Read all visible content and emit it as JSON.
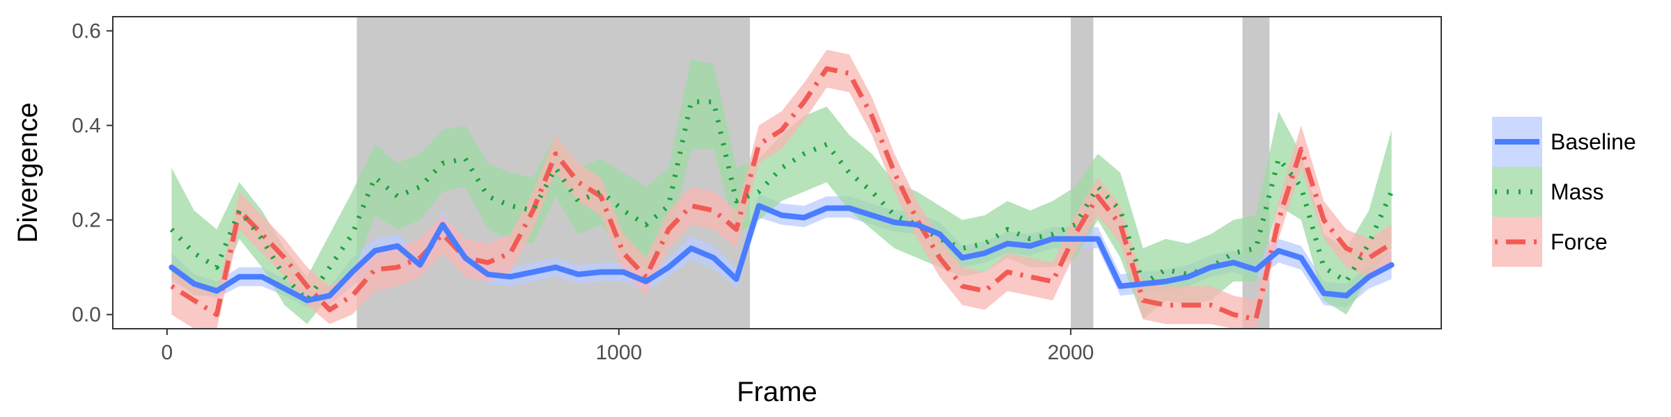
{
  "chart_data": {
    "type": "line",
    "xlabel": "Frame",
    "ylabel": "Divergence",
    "xlim": [
      -120,
      2820
    ],
    "ylim": [
      -0.03,
      0.63
    ],
    "x_ticks": [
      0,
      1000,
      2000
    ],
    "y_ticks": [
      0.0,
      0.2,
      0.4,
      0.6
    ],
    "x_tick_labels": [
      "0",
      "1000",
      "2000"
    ],
    "y_tick_labels": [
      "0.0",
      "0.2",
      "0.4",
      "0.6"
    ],
    "grid": false,
    "legend_position": "right",
    "shaded_regions": [
      [
        420,
        1290
      ],
      [
        2000,
        2050
      ],
      [
        2380,
        2440
      ]
    ],
    "x": [
      10,
      60,
      110,
      160,
      210,
      260,
      310,
      360,
      410,
      460,
      510,
      560,
      610,
      660,
      710,
      760,
      810,
      860,
      910,
      960,
      1010,
      1060,
      1110,
      1160,
      1210,
      1260,
      1310,
      1360,
      1410,
      1460,
      1510,
      1560,
      1610,
      1660,
      1710,
      1760,
      1810,
      1860,
      1910,
      1960,
      2010,
      2060,
      2110,
      2160,
      2210,
      2260,
      2310,
      2360,
      2410,
      2460,
      2510,
      2560,
      2610,
      2660,
      2710
    ],
    "series": [
      {
        "name": "Baseline",
        "color": "#4a7dff",
        "band_color": "#b9cbff",
        "line_style": "solid",
        "values": [
          0.1,
          0.065,
          0.05,
          0.08,
          0.08,
          0.055,
          0.03,
          0.04,
          0.09,
          0.135,
          0.145,
          0.105,
          0.19,
          0.12,
          0.085,
          0.08,
          0.09,
          0.1,
          0.085,
          0.09,
          0.09,
          0.07,
          0.1,
          0.14,
          0.12,
          0.075,
          0.23,
          0.21,
          0.205,
          0.225,
          0.225,
          0.21,
          0.195,
          0.19,
          0.17,
          0.12,
          0.13,
          0.15,
          0.145,
          0.16,
          0.16,
          0.16,
          0.06,
          0.065,
          0.07,
          0.08,
          0.1,
          0.11,
          0.095,
          0.135,
          0.12,
          0.045,
          0.04,
          0.08,
          0.105
        ],
        "lower": [
          0.07,
          0.045,
          0.035,
          0.06,
          0.06,
          0.04,
          0.015,
          0.02,
          0.06,
          0.11,
          0.12,
          0.08,
          0.16,
          0.095,
          0.065,
          0.06,
          0.07,
          0.08,
          0.065,
          0.07,
          0.07,
          0.05,
          0.08,
          0.115,
          0.095,
          0.055,
          0.205,
          0.19,
          0.185,
          0.205,
          0.205,
          0.19,
          0.175,
          0.17,
          0.15,
          0.1,
          0.11,
          0.13,
          0.125,
          0.14,
          0.14,
          0.14,
          0.04,
          0.045,
          0.05,
          0.06,
          0.08,
          0.09,
          0.075,
          0.11,
          0.095,
          0.02,
          0.015,
          0.055,
          0.075
        ],
        "upper": [
          0.13,
          0.085,
          0.07,
          0.1,
          0.1,
          0.075,
          0.05,
          0.06,
          0.12,
          0.16,
          0.17,
          0.13,
          0.22,
          0.145,
          0.105,
          0.1,
          0.11,
          0.12,
          0.105,
          0.11,
          0.11,
          0.09,
          0.12,
          0.165,
          0.145,
          0.1,
          0.255,
          0.235,
          0.23,
          0.25,
          0.25,
          0.235,
          0.22,
          0.215,
          0.195,
          0.145,
          0.155,
          0.175,
          0.17,
          0.185,
          0.185,
          0.185,
          0.085,
          0.09,
          0.095,
          0.105,
          0.125,
          0.135,
          0.12,
          0.16,
          0.145,
          0.07,
          0.065,
          0.105,
          0.135
        ]
      },
      {
        "name": "Mass",
        "color": "#1aa33a",
        "band_color": "#9ed9a3",
        "line_style": "dotted",
        "values": [
          0.18,
          0.13,
          0.1,
          0.22,
          0.16,
          0.08,
          0.03,
          0.1,
          0.17,
          0.29,
          0.25,
          0.27,
          0.32,
          0.33,
          0.25,
          0.23,
          0.22,
          0.31,
          0.24,
          0.26,
          0.22,
          0.19,
          0.23,
          0.45,
          0.45,
          0.24,
          0.26,
          0.31,
          0.34,
          0.36,
          0.3,
          0.26,
          0.21,
          0.19,
          0.16,
          0.14,
          0.15,
          0.18,
          0.16,
          0.17,
          0.19,
          0.27,
          0.22,
          0.065,
          0.095,
          0.085,
          0.1,
          0.13,
          0.14,
          0.33,
          0.27,
          0.1,
          0.07,
          0.15,
          0.26
        ],
        "lower": [
          0.08,
          0.04,
          0.04,
          0.16,
          0.1,
          0.02,
          -0.02,
          0.04,
          0.08,
          0.21,
          0.18,
          0.2,
          0.26,
          0.27,
          0.18,
          0.16,
          0.15,
          0.25,
          0.17,
          0.19,
          0.13,
          0.1,
          0.15,
          0.35,
          0.35,
          0.17,
          0.2,
          0.24,
          0.26,
          0.28,
          0.22,
          0.18,
          0.14,
          0.12,
          0.1,
          0.08,
          0.09,
          0.12,
          0.1,
          0.1,
          0.12,
          0.2,
          0.12,
          -0.01,
          0.03,
          0.02,
          0.03,
          0.07,
          0.07,
          0.23,
          0.2,
          0.03,
          0.0,
          0.08,
          0.14
        ],
        "upper": [
          0.31,
          0.22,
          0.18,
          0.28,
          0.22,
          0.14,
          0.08,
          0.17,
          0.26,
          0.36,
          0.32,
          0.34,
          0.39,
          0.4,
          0.32,
          0.3,
          0.29,
          0.38,
          0.31,
          0.33,
          0.3,
          0.27,
          0.31,
          0.54,
          0.53,
          0.31,
          0.33,
          0.38,
          0.42,
          0.44,
          0.38,
          0.34,
          0.28,
          0.26,
          0.23,
          0.2,
          0.21,
          0.24,
          0.22,
          0.24,
          0.27,
          0.34,
          0.3,
          0.14,
          0.16,
          0.15,
          0.17,
          0.2,
          0.21,
          0.43,
          0.34,
          0.17,
          0.14,
          0.22,
          0.39
        ]
      },
      {
        "name": "Force",
        "color": "#f25a55",
        "band_color": "#f8b6b2",
        "line_style": "dotdash",
        "values": [
          0.06,
          0.03,
          0.0,
          0.22,
          0.17,
          0.12,
          0.06,
          0.01,
          0.04,
          0.095,
          0.1,
          0.12,
          0.17,
          0.12,
          0.11,
          0.13,
          0.22,
          0.34,
          0.28,
          0.25,
          0.13,
          0.08,
          0.18,
          0.23,
          0.22,
          0.18,
          0.36,
          0.39,
          0.45,
          0.52,
          0.51,
          0.42,
          0.3,
          0.2,
          0.12,
          0.06,
          0.05,
          0.09,
          0.08,
          0.07,
          0.17,
          0.25,
          0.19,
          0.03,
          0.02,
          0.02,
          0.02,
          0.0,
          -0.01,
          0.2,
          0.35,
          0.2,
          0.14,
          0.12,
          0.15
        ],
        "lower": [
          0.0,
          -0.03,
          -0.03,
          0.18,
          0.13,
          0.08,
          0.02,
          -0.02,
          0.0,
          0.05,
          0.06,
          0.08,
          0.13,
          0.08,
          0.07,
          0.09,
          0.18,
          0.3,
          0.24,
          0.21,
          0.09,
          0.04,
          0.14,
          0.19,
          0.18,
          0.14,
          0.32,
          0.35,
          0.41,
          0.48,
          0.47,
          0.38,
          0.26,
          0.16,
          0.08,
          0.02,
          0.01,
          0.05,
          0.04,
          0.03,
          0.13,
          0.21,
          0.15,
          -0.01,
          -0.02,
          -0.02,
          -0.02,
          -0.04,
          -0.05,
          0.16,
          0.31,
          0.16,
          0.1,
          0.08,
          0.11
        ],
        "upper": [
          0.11,
          0.07,
          0.04,
          0.26,
          0.21,
          0.16,
          0.1,
          0.06,
          0.09,
          0.14,
          0.14,
          0.16,
          0.21,
          0.16,
          0.15,
          0.17,
          0.26,
          0.38,
          0.32,
          0.29,
          0.17,
          0.12,
          0.22,
          0.27,
          0.26,
          0.22,
          0.4,
          0.43,
          0.49,
          0.56,
          0.55,
          0.46,
          0.34,
          0.24,
          0.16,
          0.1,
          0.09,
          0.13,
          0.12,
          0.11,
          0.21,
          0.29,
          0.23,
          0.07,
          0.06,
          0.06,
          0.06,
          0.04,
          0.03,
          0.24,
          0.4,
          0.24,
          0.18,
          0.16,
          0.19
        ]
      }
    ]
  }
}
